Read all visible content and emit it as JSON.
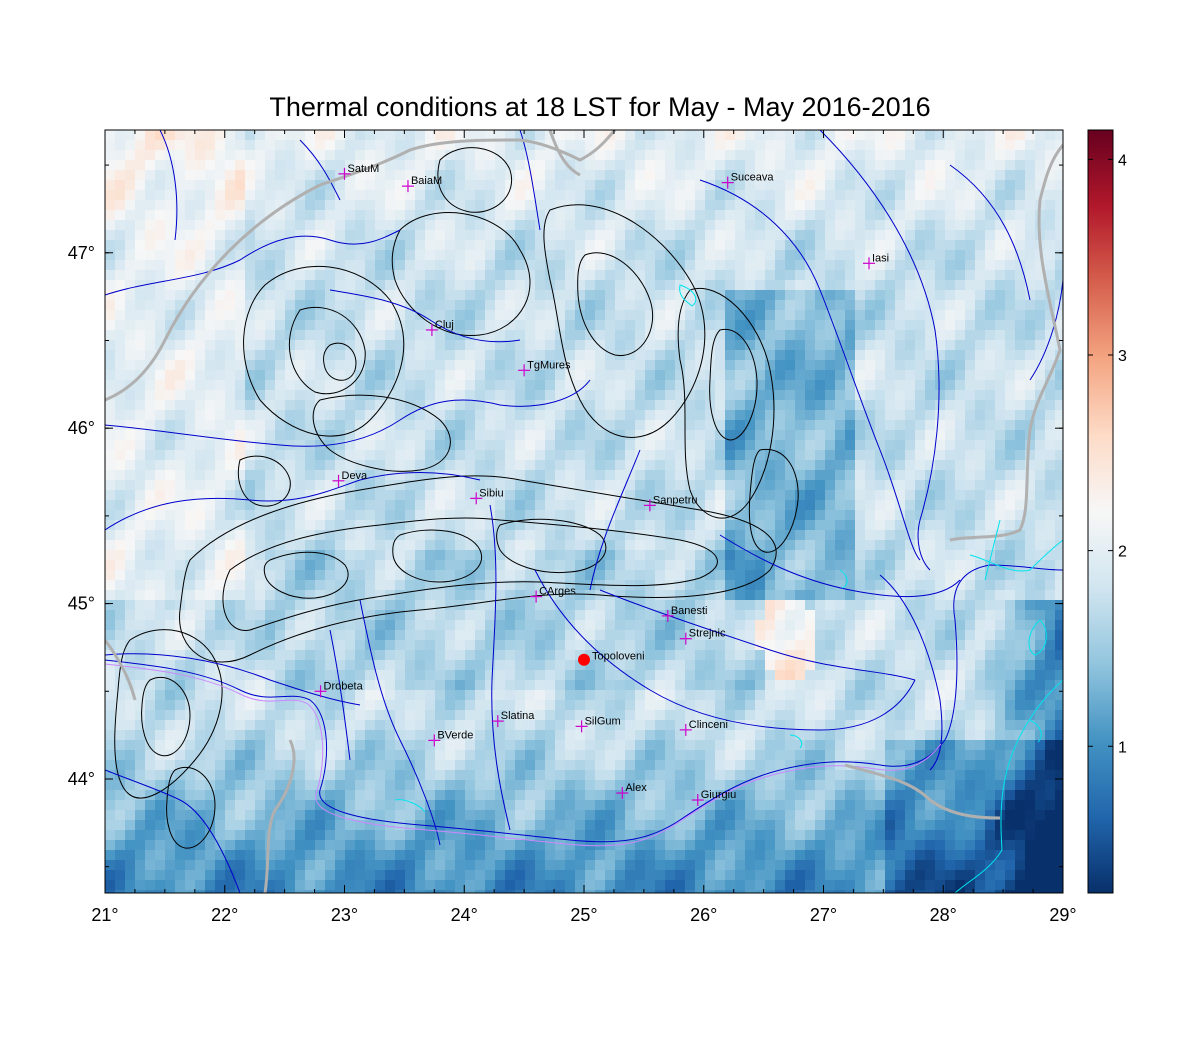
{
  "title": "Thermal conditions at 18 LST for May - May  2016-2016",
  "lon_ticks": [
    "21°",
    "22°",
    "23°",
    "24°",
    "25°",
    "26°",
    "27°",
    "28°",
    "29°"
  ],
  "lat_ticks": [
    "44°",
    "45°",
    "46°",
    "47°"
  ],
  "extent": {
    "lon": [
      21,
      29
    ],
    "lat": [
      43.35,
      47.7
    ]
  },
  "colorbar": {
    "ticks": [
      "1",
      "2",
      "3",
      "4"
    ],
    "range": [
      0.25,
      4.15
    ],
    "colors": [
      "#08306b",
      "#2166ac",
      "#4393c3",
      "#92c5de",
      "#d1e5f0",
      "#f7f7f7",
      "#fddbc7",
      "#f4a582",
      "#d6604d",
      "#b2182b",
      "#67001f"
    ]
  },
  "cities": [
    {
      "name": "SatuM",
      "lon": 23.0,
      "lat": 47.45
    },
    {
      "name": "BaiaM",
      "lon": 23.53,
      "lat": 47.38
    },
    {
      "name": "Suceava",
      "lon": 26.2,
      "lat": 47.4
    },
    {
      "name": "Iasi",
      "lon": 27.38,
      "lat": 46.94
    },
    {
      "name": "Cluj",
      "lon": 23.73,
      "lat": 46.56
    },
    {
      "name": "TgMures",
      "lon": 24.5,
      "lat": 46.33
    },
    {
      "name": "Deva",
      "lon": 22.95,
      "lat": 45.7
    },
    {
      "name": "Sibiu",
      "lon": 24.1,
      "lat": 45.6
    },
    {
      "name": "Sanpetru",
      "lon": 25.55,
      "lat": 45.56
    },
    {
      "name": "CArges",
      "lon": 24.6,
      "lat": 45.04
    },
    {
      "name": "Banesti",
      "lon": 25.7,
      "lat": 44.93
    },
    {
      "name": "Strejnic",
      "lon": 25.85,
      "lat": 44.8
    },
    {
      "name": "Drobeta",
      "lon": 22.8,
      "lat": 44.5
    },
    {
      "name": "Slatina",
      "lon": 24.28,
      "lat": 44.33
    },
    {
      "name": "SilGum",
      "lon": 24.98,
      "lat": 44.3
    },
    {
      "name": "Clinceni",
      "lon": 25.85,
      "lat": 44.28
    },
    {
      "name": "BVerde",
      "lon": 23.75,
      "lat": 44.22
    },
    {
      "name": "Alex",
      "lon": 25.32,
      "lat": 43.92
    },
    {
      "name": "Giurgiu",
      "lon": 25.95,
      "lat": 43.88
    }
  ],
  "highlight_point": {
    "name": "Topoloveni",
    "lon": 25.0,
    "lat": 44.68,
    "color": "#ff0000"
  },
  "colors": {
    "city_marker": "#cc00cc",
    "rivers": "#0000cc",
    "contours": "#000000",
    "borders": "#b0b0b0",
    "lakes": "#00e5ee"
  }
}
